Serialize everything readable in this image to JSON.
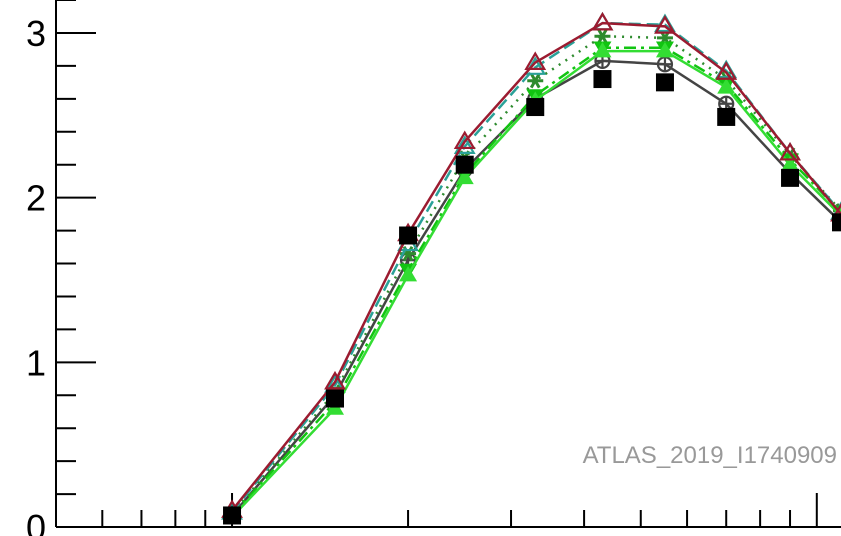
{
  "chart_data": {
    "type": "line",
    "watermark": "ATLAS_2019_I1740909",
    "x_scale": "log",
    "xlim": [
      5,
      110
    ],
    "ylim": [
      0,
      3.2
    ],
    "y_ticks": [
      {
        "value": 0,
        "label": "0"
      },
      {
        "value": 1,
        "label": "1"
      },
      {
        "value": 2,
        "label": "2"
      },
      {
        "value": 3,
        "label": "3"
      }
    ],
    "x": [
      10,
      15,
      20,
      25,
      33,
      43,
      55,
      70,
      90,
      110
    ],
    "data_points": {
      "marker": "filled-square",
      "color": "#000000",
      "values": [
        0.07,
        0.78,
        1.77,
        2.2,
        2.55,
        2.72,
        2.7,
        2.49,
        2.12,
        1.85
      ]
    },
    "series": [
      {
        "color": "#444444",
        "dash": "solid",
        "marker": "circle-plus",
        "values": [
          0.07,
          0.8,
          1.62,
          2.17,
          2.6,
          2.83,
          2.81,
          2.57,
          2.15,
          1.85
        ]
      },
      {
        "color": "#2e8b2e",
        "dash": "dotted",
        "marker": "star",
        "values": [
          0.08,
          0.82,
          1.66,
          2.24,
          2.71,
          2.98,
          2.97,
          2.72,
          2.26,
          1.92
        ]
      },
      {
        "color": "#2aa198",
        "dash": "dashed",
        "marker": "triangle-open",
        "values": [
          0.09,
          0.86,
          1.72,
          2.31,
          2.79,
          3.06,
          3.05,
          2.77,
          2.27,
          1.91
        ]
      },
      {
        "color": "#11c411",
        "dash": "dashdot",
        "marker": "triangle-down-filled",
        "values": [
          0.07,
          0.76,
          1.56,
          2.14,
          2.62,
          2.91,
          2.91,
          2.69,
          2.23,
          1.91
        ]
      },
      {
        "color": "#33dd33",
        "dash": "solid",
        "marker": "triangle-filled",
        "values": [
          0.06,
          0.72,
          1.53,
          2.12,
          2.59,
          2.89,
          2.89,
          2.67,
          2.2,
          1.89
        ]
      },
      {
        "color": "#9b1b30",
        "dash": "solid",
        "marker": "triangle-open",
        "values": [
          0.1,
          0.88,
          1.78,
          2.34,
          2.82,
          3.06,
          3.04,
          2.76,
          2.27,
          1.9
        ]
      }
    ]
  }
}
